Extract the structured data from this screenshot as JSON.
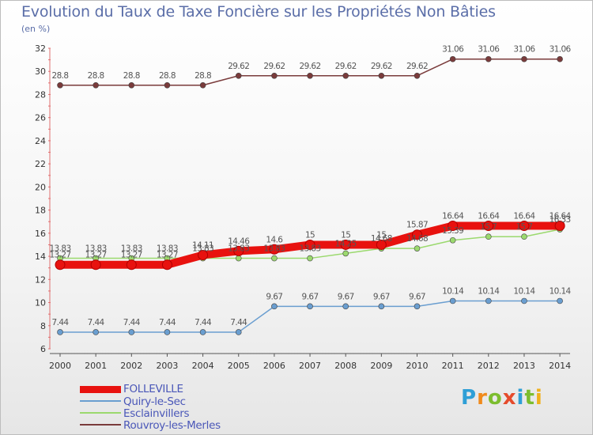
{
  "chart_data": {
    "type": "line",
    "title": "Evolution du Taux de Taxe Foncière sur les Propriétés Non Bâties",
    "ylabel": "(en %)",
    "ylim": [
      6,
      32
    ],
    "yticks": [
      6,
      8,
      10,
      12,
      14,
      16,
      18,
      20,
      22,
      24,
      26,
      28,
      30,
      32
    ],
    "categories": [
      "2000",
      "2001",
      "2002",
      "2003",
      "2004",
      "2005",
      "2006",
      "2007",
      "2008",
      "2009",
      "2010",
      "2011",
      "2012",
      "2013",
      "2014"
    ],
    "series": [
      {
        "name": "FOLLEVILLE",
        "color": "#e8120f",
        "values": [
          13.27,
          13.27,
          13.27,
          13.27,
          14.11,
          14.46,
          14.6,
          15,
          15,
          15,
          15.87,
          16.64,
          16.64,
          16.64,
          16.64
        ]
      },
      {
        "name": "Quiry-le-Sec",
        "color": "#6a9ed0",
        "values": [
          7.44,
          7.44,
          7.44,
          7.44,
          7.44,
          7.44,
          9.67,
          9.67,
          9.67,
          9.67,
          9.67,
          10.14,
          10.14,
          10.14,
          10.14
        ]
      },
      {
        "name": "Esclainvillers",
        "color": "#9bd96e",
        "values": [
          13.83,
          13.83,
          13.83,
          13.83,
          13.83,
          13.83,
          13.83,
          13.83,
          14.25,
          14.68,
          14.68,
          15.39,
          15.7,
          15.7,
          16.33
        ]
      },
      {
        "name": "Rouvroy-les-Merles",
        "color": "#7a3b3b",
        "values": [
          28.8,
          28.8,
          28.8,
          28.8,
          28.8,
          29.62,
          29.62,
          29.62,
          29.62,
          29.62,
          29.62,
          31.06,
          31.06,
          31.06,
          31.06
        ]
      }
    ]
  },
  "logo_text": "Proxiti"
}
